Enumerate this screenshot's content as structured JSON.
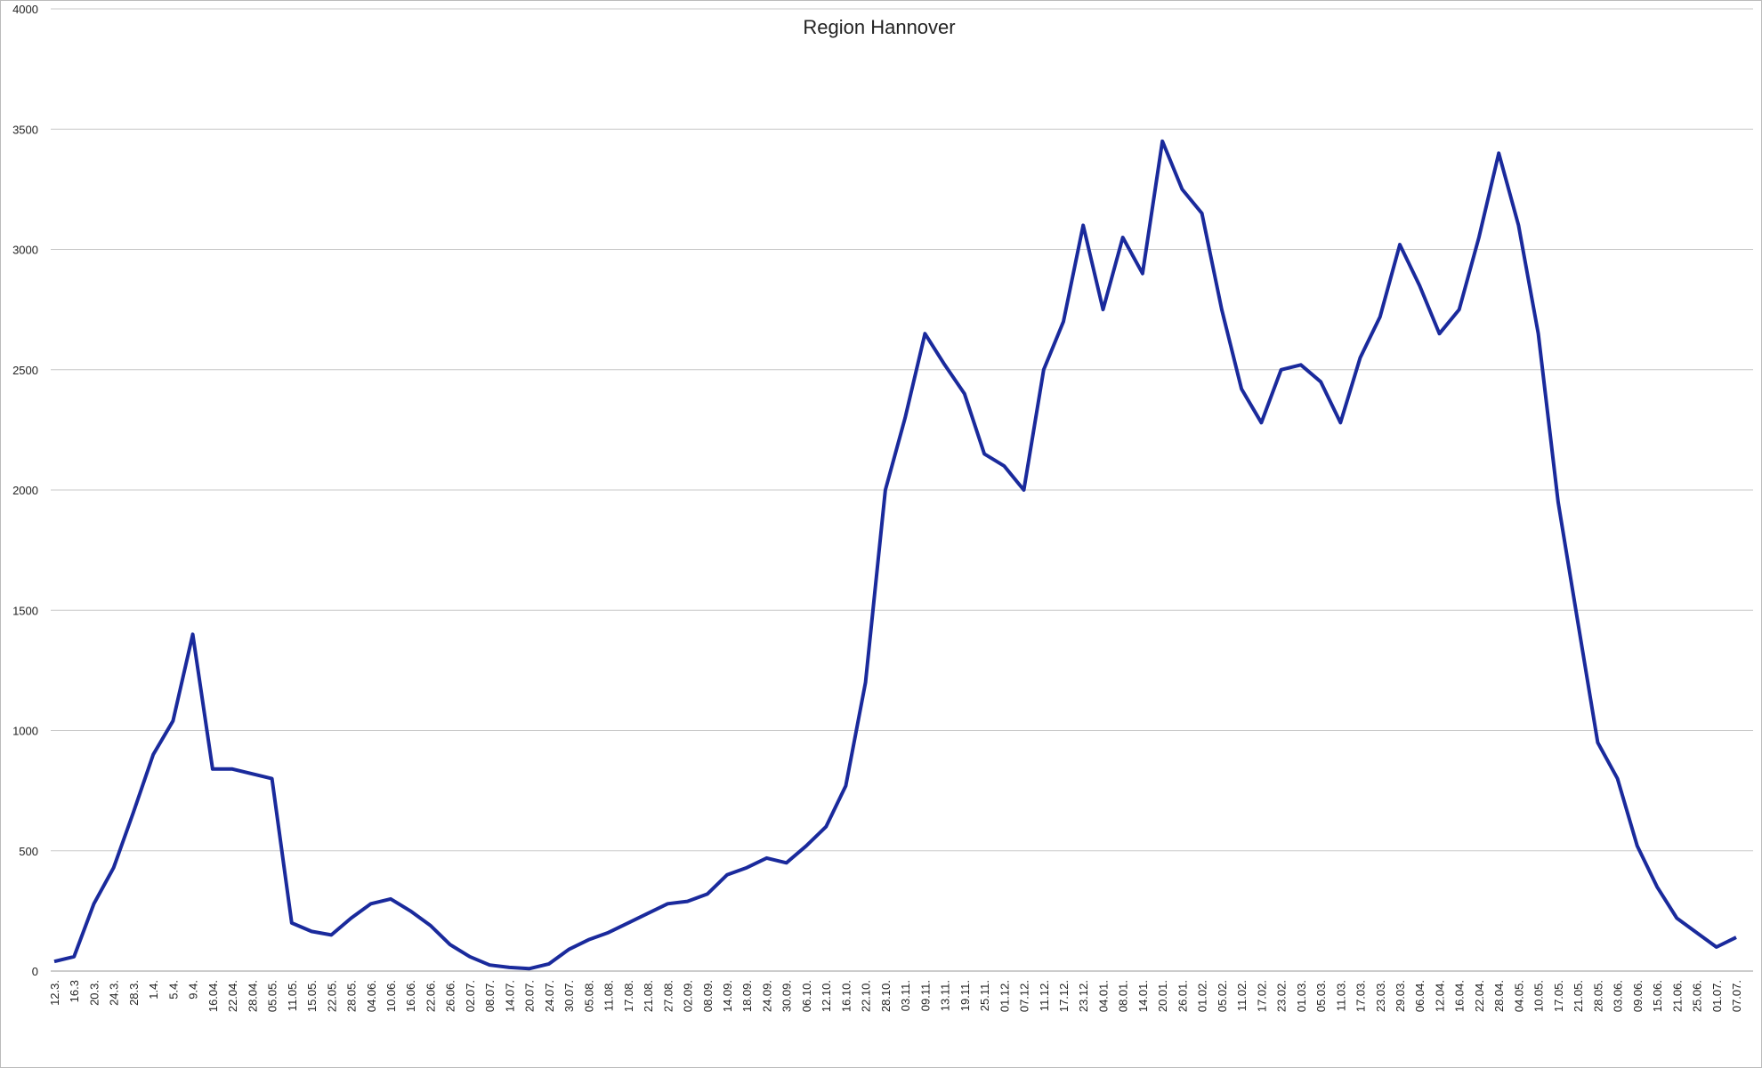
{
  "chart_data": {
    "type": "line",
    "title": "Region Hannover",
    "categories": [
      "12.3.",
      "16.3",
      "20.3.",
      "24.3.",
      "28.3.",
      "1.4.",
      "5.4.",
      "9.4.",
      "16.04.",
      "22.04.",
      "28.04.",
      "05.05.",
      "11.05.",
      "15.05.",
      "22.05.",
      "28.05.",
      "04.06.",
      "10.06.",
      "16.06.",
      "22.06.",
      "26.06.",
      "02.07.",
      "08.07.",
      "14.07.",
      "20.07.",
      "24.07.",
      "30.07.",
      "05.08.",
      "11.08.",
      "17.08.",
      "21.08.",
      "27.08.",
      "02.09.",
      "08.09.",
      "14.09.",
      "18.09.",
      "24.09.",
      "30.09.",
      "06.10.",
      "12.10.",
      "16.10.",
      "22.10.",
      "28.10.",
      "03.11.",
      "09.11.",
      "13.11.",
      "19.11.",
      "25.11.",
      "01.12.",
      "07.12.",
      "11.12.",
      "17.12.",
      "23.12.",
      "04.01.",
      "08.01.",
      "14.01.",
      "20.01.",
      "26.01.",
      "01.02.",
      "05.02.",
      "11.02.",
      "17.02.",
      "23.02.",
      "01.03.",
      "05.03.",
      "11.03.",
      "17.03.",
      "23.03.",
      "29.03.",
      "06.04.",
      "12.04.",
      "16.04.",
      "22.04.",
      "28.04.",
      "04.05.",
      "10.05.",
      "17.05.",
      "21.05.",
      "28.05.",
      "03.06.",
      "09.06.",
      "15.06.",
      "21.06.",
      "25.06.",
      "01.07.",
      "07.07."
    ],
    "series": [
      {
        "color": "#1a2a9c",
        "values": [
          40,
          60,
          280,
          430,
          660,
          900,
          1040,
          1400,
          840,
          840,
          820,
          800,
          200,
          165,
          150,
          220,
          280,
          300,
          250,
          190,
          110,
          60,
          25,
          15,
          10,
          30,
          90,
          130,
          160,
          200,
          240,
          280,
          290,
          320,
          400,
          430,
          470,
          450,
          520,
          600,
          770,
          1200,
          2000,
          2300,
          2650,
          2520,
          2400,
          2150,
          2100,
          2000,
          2500,
          2700,
          3100,
          2750,
          3050,
          2900,
          3450,
          3250,
          3150,
          2750,
          2420,
          2280,
          2500,
          2520,
          2450,
          2280,
          2550,
          2720,
          3020,
          2850,
          2650,
          2750,
          3050,
          3400,
          3100,
          2650,
          1950,
          1450,
          950,
          800,
          520,
          350,
          220,
          160,
          100,
          140
        ]
      }
    ],
    "ylim": [
      0,
      4000
    ],
    "yticks": [
      0,
      500,
      1000,
      1500,
      2000,
      2500,
      3000,
      3500,
      4000
    ],
    "grid": true
  }
}
